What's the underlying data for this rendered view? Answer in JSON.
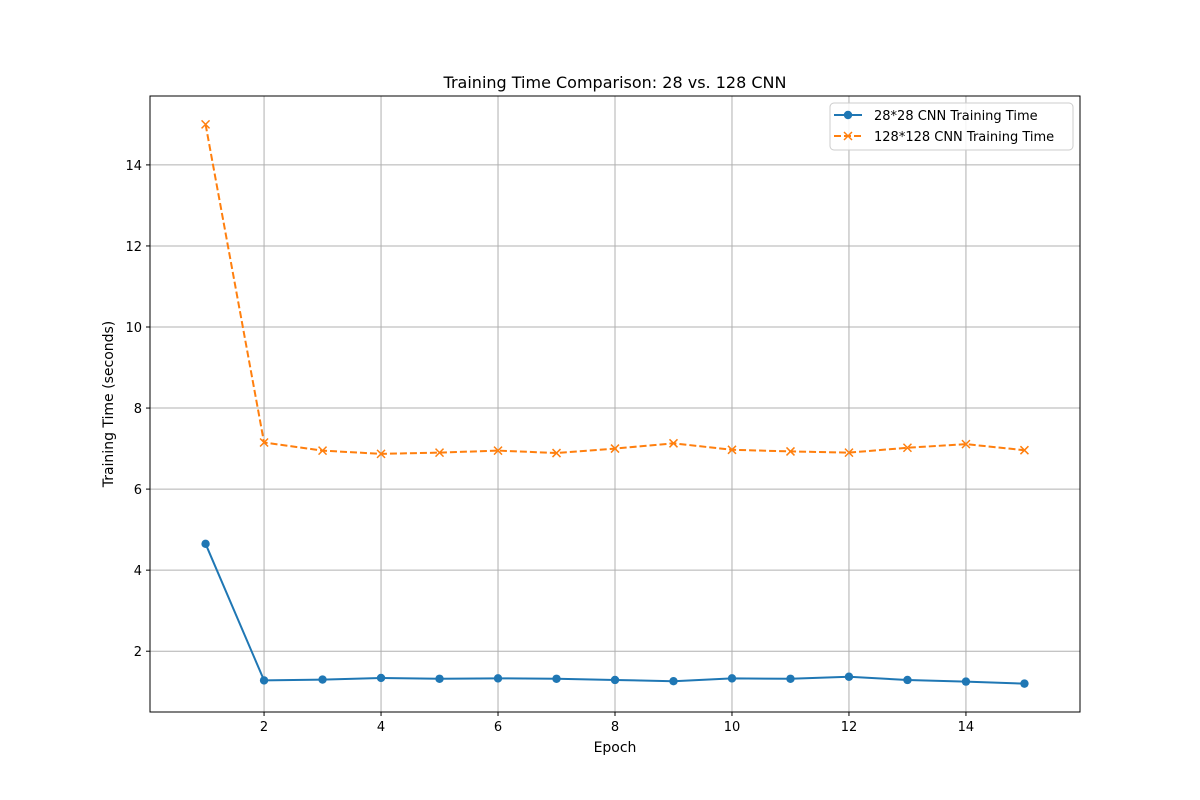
{
  "chart_data": {
    "type": "line",
    "title": "Training Time Comparison: 28 vs. 128 CNN",
    "xlabel": "Epoch",
    "ylabel": "Training Time (seconds)",
    "xlim": [
      0.05,
      15.95
    ],
    "ylim": [
      0.5,
      15.7
    ],
    "xticks": [
      2,
      4,
      6,
      8,
      10,
      12,
      14
    ],
    "yticks": [
      2,
      4,
      6,
      8,
      10,
      12,
      14
    ],
    "grid": true,
    "legend_position": "top-right",
    "x": [
      1,
      2,
      3,
      4,
      5,
      6,
      7,
      8,
      9,
      10,
      11,
      12,
      13,
      14,
      15
    ],
    "series": [
      {
        "name": "28*28 CNN Training Time",
        "color": "#1f77b4",
        "marker": "circle",
        "line_style": "solid",
        "values": [
          4.65,
          1.28,
          1.3,
          1.34,
          1.32,
          1.33,
          1.32,
          1.29,
          1.26,
          1.33,
          1.32,
          1.37,
          1.29,
          1.25,
          1.2
        ]
      },
      {
        "name": "128*128 CNN Training Time",
        "color": "#ff7f0e",
        "marker": "x",
        "line_style": "dashed",
        "values": [
          15.0,
          7.15,
          6.95,
          6.87,
          6.9,
          6.95,
          6.89,
          7.0,
          7.13,
          6.97,
          6.93,
          6.9,
          7.02,
          7.11,
          6.96
        ]
      }
    ]
  }
}
